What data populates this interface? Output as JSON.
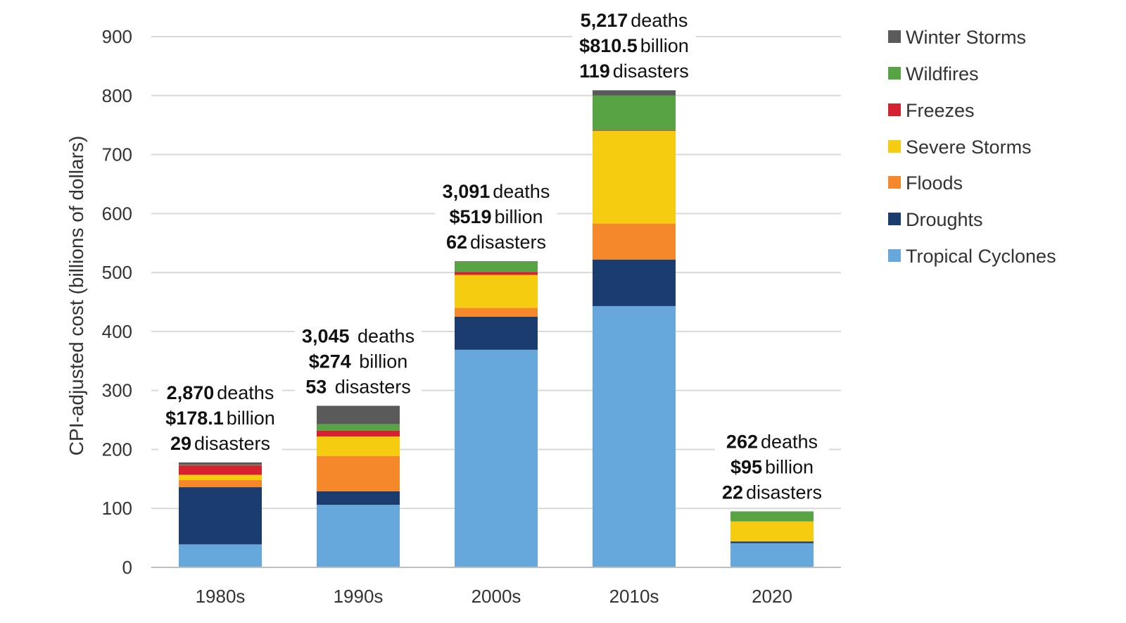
{
  "chart_data": {
    "type": "bar",
    "stacked": true,
    "ylabel": "CPI-adjusted cost (billions of dollars)",
    "xlabel": "",
    "ylim": [
      0,
      900
    ],
    "yticks": [
      "0",
      "100",
      "200",
      "300",
      "400",
      "500",
      "600",
      "700",
      "800",
      "900"
    ],
    "grid": true,
    "legend_position": "right",
    "categories": [
      "1980s",
      "1990s",
      "2000s",
      "2010s",
      "2020"
    ],
    "series": [
      {
        "name": "Tropical Cyclones",
        "color": "#67a8dc",
        "values": [
          39,
          106,
          369,
          443,
          41
        ]
      },
      {
        "name": "Droughts",
        "color": "#1b3c6e",
        "values": [
          97,
          23,
          56,
          79,
          3
        ]
      },
      {
        "name": "Floods",
        "color": "#f5882a",
        "values": [
          12,
          60,
          15,
          61,
          0
        ]
      },
      {
        "name": "Severe Storms",
        "color": "#f5cc10",
        "values": [
          9,
          33,
          56,
          157,
          34
        ]
      },
      {
        "name": "Freezes",
        "color": "#d62230",
        "values": [
          16,
          10,
          5,
          1,
          0
        ]
      },
      {
        "name": "Wildfires",
        "color": "#58a444",
        "values": [
          1,
          11,
          17,
          59,
          17
        ]
      },
      {
        "name": "Winter Storms",
        "color": "#5a5a5a",
        "values": [
          4,
          31,
          1,
          9,
          0
        ]
      }
    ],
    "annotations": [
      {
        "category": "1980s",
        "lines": [
          [
            "2,870",
            "deaths"
          ],
          [
            "$178.1",
            "billion"
          ],
          [
            "29",
            "disasters"
          ]
        ]
      },
      {
        "category": "1990s",
        "lines": [
          [
            "3,045",
            " deaths"
          ],
          [
            "$274",
            " billion"
          ],
          [
            "53",
            " disasters"
          ]
        ]
      },
      {
        "category": "2000s",
        "lines": [
          [
            "3,091",
            "deaths"
          ],
          [
            "$519",
            "billion"
          ],
          [
            "62",
            "disasters"
          ]
        ]
      },
      {
        "category": "2010s",
        "lines": [
          [
            "5,217",
            "deaths"
          ],
          [
            "$810.5",
            "billion"
          ],
          [
            "119",
            "disasters"
          ]
        ]
      },
      {
        "category": "2020",
        "lines": [
          [
            "262",
            "deaths"
          ],
          [
            "$95",
            "billion"
          ],
          [
            "22",
            "disasters"
          ]
        ]
      }
    ]
  }
}
